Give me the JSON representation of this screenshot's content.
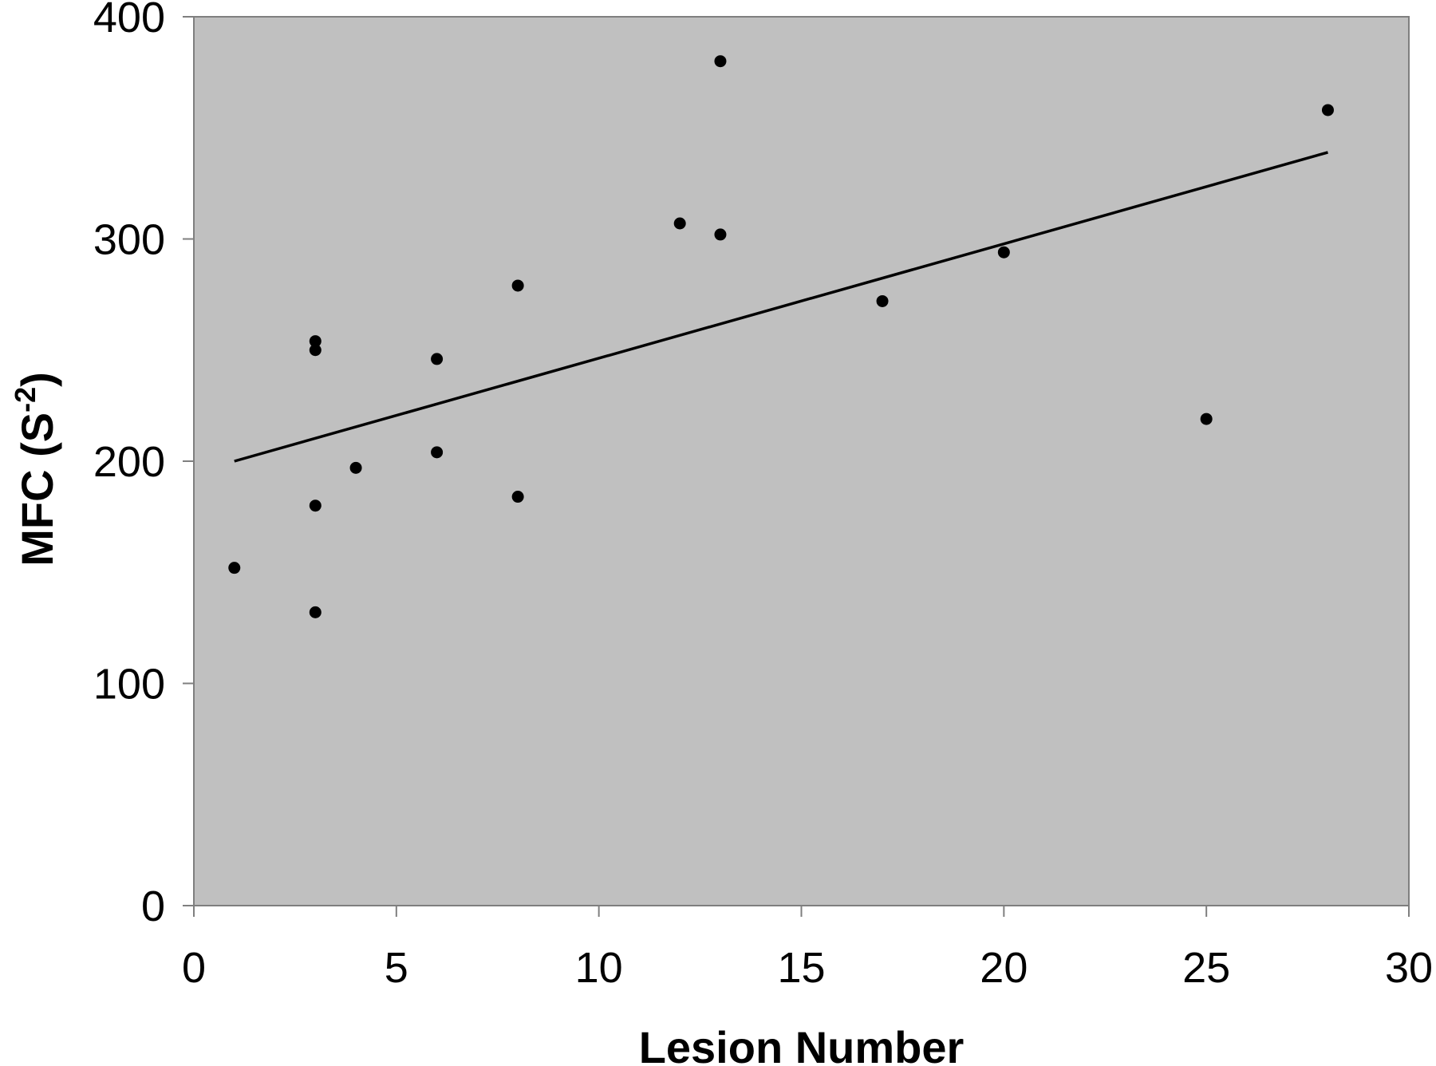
{
  "chart_data": {
    "type": "scatter",
    "title": "",
    "xlabel": "Lesion Number",
    "ylabel": {
      "main": "MFC (S",
      "superscript": "-2",
      "close": ")"
    },
    "xlim": [
      0,
      30
    ],
    "ylim": [
      0,
      400
    ],
    "xticks": [
      0,
      5,
      10,
      15,
      20,
      25,
      30
    ],
    "yticks": [
      0,
      100,
      200,
      300,
      400
    ],
    "x_tick_labels": [
      "0",
      "5",
      "10",
      "15",
      "20",
      "25",
      "30"
    ],
    "y_tick_labels": [
      "0",
      "100",
      "200",
      "300",
      "400"
    ],
    "grid": false,
    "legend": "none",
    "colors": {
      "plot_background": "#c0c0c0",
      "points": "#000000",
      "trendline": "#000000",
      "axis": "#7f7f7f"
    },
    "points": [
      {
        "x": 1,
        "y": 152
      },
      {
        "x": 3,
        "y": 132
      },
      {
        "x": 3,
        "y": 180
      },
      {
        "x": 3,
        "y": 250
      },
      {
        "x": 3,
        "y": 254
      },
      {
        "x": 4,
        "y": 197
      },
      {
        "x": 6,
        "y": 204
      },
      {
        "x": 6,
        "y": 246
      },
      {
        "x": 8,
        "y": 184
      },
      {
        "x": 8,
        "y": 279
      },
      {
        "x": 12,
        "y": 307
      },
      {
        "x": 13,
        "y": 302
      },
      {
        "x": 13,
        "y": 380
      },
      {
        "x": 17,
        "y": 272
      },
      {
        "x": 20,
        "y": 294
      },
      {
        "x": 25,
        "y": 219
      },
      {
        "x": 28,
        "y": 358
      }
    ],
    "trendline": {
      "type": "linear",
      "from": {
        "x": 1,
        "y": 200
      },
      "to": {
        "x": 28,
        "y": 339
      }
    }
  }
}
